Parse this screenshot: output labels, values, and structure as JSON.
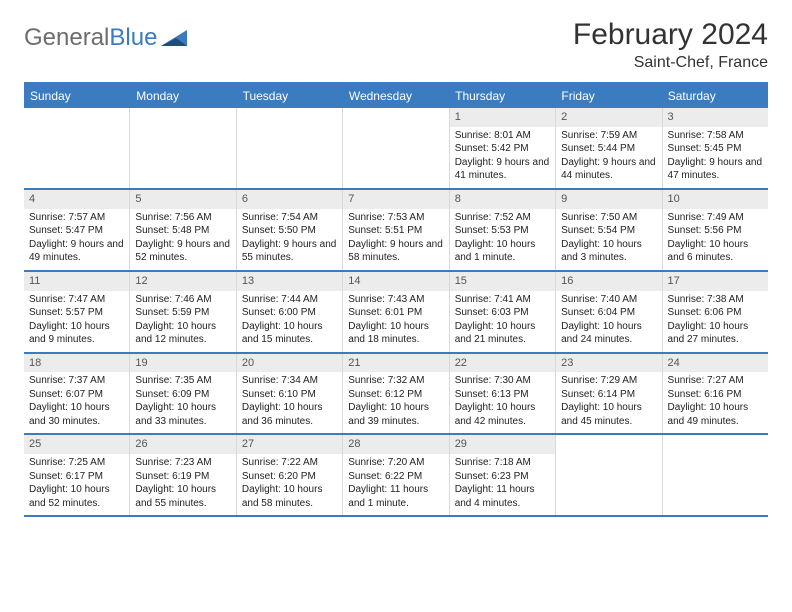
{
  "logo": {
    "text_gray": "General",
    "text_blue": "Blue"
  },
  "title": "February 2024",
  "location": "Saint-Chef, France",
  "colors": {
    "header_bg": "#3b7bbf",
    "header_text": "#ffffff",
    "border": "#3b7bbf",
    "daynum_bg": "#ececec",
    "text": "#222222"
  },
  "day_headers": [
    "Sunday",
    "Monday",
    "Tuesday",
    "Wednesday",
    "Thursday",
    "Friday",
    "Saturday"
  ],
  "weeks": [
    [
      {
        "empty": true
      },
      {
        "empty": true
      },
      {
        "empty": true
      },
      {
        "empty": true
      },
      {
        "day": "1",
        "sunrise": "Sunrise: 8:01 AM",
        "sunset": "Sunset: 5:42 PM",
        "daylight": "Daylight: 9 hours and 41 minutes."
      },
      {
        "day": "2",
        "sunrise": "Sunrise: 7:59 AM",
        "sunset": "Sunset: 5:44 PM",
        "daylight": "Daylight: 9 hours and 44 minutes."
      },
      {
        "day": "3",
        "sunrise": "Sunrise: 7:58 AM",
        "sunset": "Sunset: 5:45 PM",
        "daylight": "Daylight: 9 hours and 47 minutes."
      }
    ],
    [
      {
        "day": "4",
        "sunrise": "Sunrise: 7:57 AM",
        "sunset": "Sunset: 5:47 PM",
        "daylight": "Daylight: 9 hours and 49 minutes."
      },
      {
        "day": "5",
        "sunrise": "Sunrise: 7:56 AM",
        "sunset": "Sunset: 5:48 PM",
        "daylight": "Daylight: 9 hours and 52 minutes."
      },
      {
        "day": "6",
        "sunrise": "Sunrise: 7:54 AM",
        "sunset": "Sunset: 5:50 PM",
        "daylight": "Daylight: 9 hours and 55 minutes."
      },
      {
        "day": "7",
        "sunrise": "Sunrise: 7:53 AM",
        "sunset": "Sunset: 5:51 PM",
        "daylight": "Daylight: 9 hours and 58 minutes."
      },
      {
        "day": "8",
        "sunrise": "Sunrise: 7:52 AM",
        "sunset": "Sunset: 5:53 PM",
        "daylight": "Daylight: 10 hours and 1 minute."
      },
      {
        "day": "9",
        "sunrise": "Sunrise: 7:50 AM",
        "sunset": "Sunset: 5:54 PM",
        "daylight": "Daylight: 10 hours and 3 minutes."
      },
      {
        "day": "10",
        "sunrise": "Sunrise: 7:49 AM",
        "sunset": "Sunset: 5:56 PM",
        "daylight": "Daylight: 10 hours and 6 minutes."
      }
    ],
    [
      {
        "day": "11",
        "sunrise": "Sunrise: 7:47 AM",
        "sunset": "Sunset: 5:57 PM",
        "daylight": "Daylight: 10 hours and 9 minutes."
      },
      {
        "day": "12",
        "sunrise": "Sunrise: 7:46 AM",
        "sunset": "Sunset: 5:59 PM",
        "daylight": "Daylight: 10 hours and 12 minutes."
      },
      {
        "day": "13",
        "sunrise": "Sunrise: 7:44 AM",
        "sunset": "Sunset: 6:00 PM",
        "daylight": "Daylight: 10 hours and 15 minutes."
      },
      {
        "day": "14",
        "sunrise": "Sunrise: 7:43 AM",
        "sunset": "Sunset: 6:01 PM",
        "daylight": "Daylight: 10 hours and 18 minutes."
      },
      {
        "day": "15",
        "sunrise": "Sunrise: 7:41 AM",
        "sunset": "Sunset: 6:03 PM",
        "daylight": "Daylight: 10 hours and 21 minutes."
      },
      {
        "day": "16",
        "sunrise": "Sunrise: 7:40 AM",
        "sunset": "Sunset: 6:04 PM",
        "daylight": "Daylight: 10 hours and 24 minutes."
      },
      {
        "day": "17",
        "sunrise": "Sunrise: 7:38 AM",
        "sunset": "Sunset: 6:06 PM",
        "daylight": "Daylight: 10 hours and 27 minutes."
      }
    ],
    [
      {
        "day": "18",
        "sunrise": "Sunrise: 7:37 AM",
        "sunset": "Sunset: 6:07 PM",
        "daylight": "Daylight: 10 hours and 30 minutes."
      },
      {
        "day": "19",
        "sunrise": "Sunrise: 7:35 AM",
        "sunset": "Sunset: 6:09 PM",
        "daylight": "Daylight: 10 hours and 33 minutes."
      },
      {
        "day": "20",
        "sunrise": "Sunrise: 7:34 AM",
        "sunset": "Sunset: 6:10 PM",
        "daylight": "Daylight: 10 hours and 36 minutes."
      },
      {
        "day": "21",
        "sunrise": "Sunrise: 7:32 AM",
        "sunset": "Sunset: 6:12 PM",
        "daylight": "Daylight: 10 hours and 39 minutes."
      },
      {
        "day": "22",
        "sunrise": "Sunrise: 7:30 AM",
        "sunset": "Sunset: 6:13 PM",
        "daylight": "Daylight: 10 hours and 42 minutes."
      },
      {
        "day": "23",
        "sunrise": "Sunrise: 7:29 AM",
        "sunset": "Sunset: 6:14 PM",
        "daylight": "Daylight: 10 hours and 45 minutes."
      },
      {
        "day": "24",
        "sunrise": "Sunrise: 7:27 AM",
        "sunset": "Sunset: 6:16 PM",
        "daylight": "Daylight: 10 hours and 49 minutes."
      }
    ],
    [
      {
        "day": "25",
        "sunrise": "Sunrise: 7:25 AM",
        "sunset": "Sunset: 6:17 PM",
        "daylight": "Daylight: 10 hours and 52 minutes."
      },
      {
        "day": "26",
        "sunrise": "Sunrise: 7:23 AM",
        "sunset": "Sunset: 6:19 PM",
        "daylight": "Daylight: 10 hours and 55 minutes."
      },
      {
        "day": "27",
        "sunrise": "Sunrise: 7:22 AM",
        "sunset": "Sunset: 6:20 PM",
        "daylight": "Daylight: 10 hours and 58 minutes."
      },
      {
        "day": "28",
        "sunrise": "Sunrise: 7:20 AM",
        "sunset": "Sunset: 6:22 PM",
        "daylight": "Daylight: 11 hours and 1 minute."
      },
      {
        "day": "29",
        "sunrise": "Sunrise: 7:18 AM",
        "sunset": "Sunset: 6:23 PM",
        "daylight": "Daylight: 11 hours and 4 minutes."
      },
      {
        "empty": true
      },
      {
        "empty": true
      }
    ]
  ]
}
